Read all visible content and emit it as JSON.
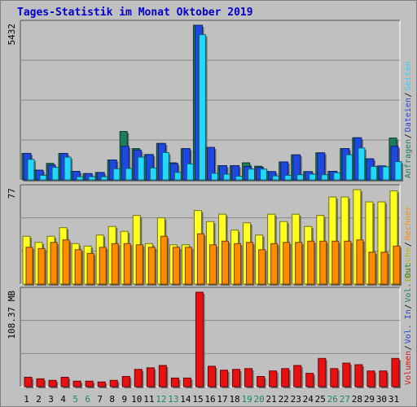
{
  "title": "Tages-Statistik im Monat Oktober 2019",
  "colors": {
    "anfragen": "#1a7f5a",
    "dateien": "#1f48e0",
    "seiten": "#22d8ff",
    "besuche": "#ffff22",
    "rechner": "#ff8c00",
    "volumen": "#e81010",
    "weekend": "#148a5a",
    "weekday": "#000000",
    "grid": "#888888",
    "panel": "#c0c0c0"
  },
  "chart_data": [
    {
      "type": "bar",
      "name": "top",
      "ymax_label": "5432",
      "ymax": 5432,
      "legend": [
        "Anfragen",
        "Dateien",
        "Seiten"
      ],
      "categories": [
        "1",
        "2",
        "3",
        "4",
        "5",
        "6",
        "7",
        "8",
        "9",
        "10",
        "11",
        "12",
        "13",
        "14",
        "15",
        "16",
        "17",
        "18",
        "19",
        "20",
        "21",
        "22",
        "23",
        "24",
        "25",
        "26",
        "27",
        "28",
        "29",
        "30",
        "31"
      ],
      "weekend": [
        5,
        6,
        12,
        13,
        19,
        20,
        26,
        27
      ],
      "series": [
        {
          "name": "Anfragen",
          "values": [
            930,
            340,
            580,
            930,
            300,
            220,
            260,
            700,
            1700,
            1100,
            890,
            1280,
            600,
            1100,
            5432,
            1140,
            500,
            500,
            600,
            480,
            290,
            630,
            880,
            290,
            950,
            300,
            1100,
            1480,
            740,
            490,
            1470
          ]
        },
        {
          "name": "Dateien",
          "values": [
            930,
            340,
            520,
            930,
            300,
            220,
            260,
            700,
            1180,
            1050,
            890,
            1280,
            580,
            1100,
            5432,
            1140,
            500,
            500,
            470,
            440,
            290,
            630,
            880,
            290,
            950,
            300,
            1100,
            1480,
            740,
            490,
            1180
          ]
        },
        {
          "name": "Seiten",
          "values": [
            720,
            160,
            440,
            800,
            110,
            110,
            110,
            390,
            400,
            800,
            420,
            960,
            260,
            560,
            5100,
            230,
            200,
            130,
            380,
            380,
            140,
            160,
            180,
            200,
            180,
            250,
            880,
            1120,
            470,
            460,
            640
          ]
        }
      ]
    },
    {
      "type": "bar",
      "name": "middle",
      "ymax_label": "77",
      "ymax": 77,
      "legend": [
        "Besuche",
        "Rechner"
      ],
      "categories": [
        "1",
        "2",
        "3",
        "4",
        "5",
        "6",
        "7",
        "8",
        "9",
        "10",
        "11",
        "12",
        "13",
        "14",
        "15",
        "16",
        "17",
        "18",
        "19",
        "20",
        "21",
        "22",
        "23",
        "24",
        "25",
        "26",
        "27",
        "28",
        "29",
        "30",
        "31"
      ],
      "series": [
        {
          "name": "Besuche",
          "values": [
            39,
            34,
            39,
            46,
            33,
            31,
            40,
            47,
            43,
            56,
            33,
            54,
            32,
            32,
            60,
            51,
            57,
            44,
            50,
            40,
            57,
            51,
            57,
            47,
            56,
            71,
            71,
            77,
            67,
            67,
            76
          ]
        },
        {
          "name": "Rechner",
          "values": [
            30,
            29,
            34,
            36,
            28,
            25,
            30,
            33,
            33,
            32,
            30,
            39,
            30,
            30,
            41,
            32,
            35,
            33,
            34,
            28,
            33,
            34,
            34,
            35,
            35,
            35,
            35,
            36,
            26,
            26,
            31
          ]
        }
      ]
    },
    {
      "type": "bar",
      "name": "bottom",
      "ymax_label": "108.37 MB",
      "ymax": 108.37,
      "legend": [
        "Volumen",
        "Vol. In",
        "Vol. Out"
      ],
      "categories": [
        "1",
        "2",
        "3",
        "4",
        "5",
        "6",
        "7",
        "8",
        "9",
        "10",
        "11",
        "12",
        "13",
        "14",
        "15",
        "16",
        "17",
        "18",
        "19",
        "20",
        "21",
        "22",
        "23",
        "24",
        "25",
        "26",
        "27",
        "28",
        "29",
        "30",
        "31"
      ],
      "series": [
        {
          "name": "Volumen",
          "values": [
            10.8,
            9.0,
            7.2,
            10.8,
            6.3,
            6.3,
            5.4,
            7.2,
            11.7,
            19.8,
            21.6,
            24.3,
            9.9,
            9.9,
            108.37,
            23.4,
            18.9,
            19.8,
            20.7,
            11.7,
            18.0,
            20.7,
            24.3,
            15.3,
            32.4,
            20.7,
            27.0,
            25.2,
            18.0,
            18.0,
            32.4
          ]
        }
      ]
    }
  ]
}
